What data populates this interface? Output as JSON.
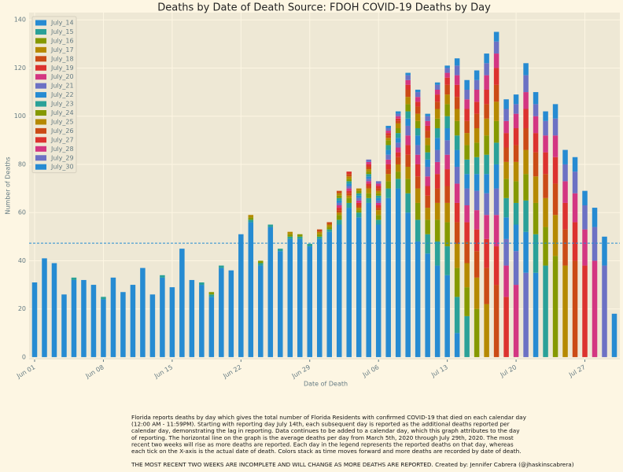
{
  "chart_data": {
    "type": "stacked_bar",
    "title": "Deaths by Date of Death      Source: FDOH COVID-19 Deaths by Day",
    "x_label": "Date of Death",
    "y_label": "Number of Deaths",
    "categories": [
      "Jun 01",
      null,
      null,
      null,
      null,
      null,
      null,
      "Jun 08",
      null,
      null,
      null,
      null,
      null,
      null,
      "Jun 15",
      null,
      null,
      null,
      null,
      null,
      null,
      "Jun 22",
      null,
      null,
      null,
      null,
      null,
      null,
      "Jun 29",
      null,
      null,
      null,
      null,
      null,
      null,
      "Jul 06",
      null,
      null,
      null,
      null,
      null,
      null,
      "Jul 13",
      null,
      null,
      null,
      null,
      null,
      null,
      "Jul 20",
      null,
      null,
      null,
      null,
      null,
      null,
      "Jul 27",
      null,
      null,
      null
    ],
    "ylim": [
      -1,
      143
    ],
    "yticks": [
      0,
      20,
      40,
      60,
      80,
      100,
      120,
      140
    ],
    "grid": true,
    "legend": "upper left",
    "reference_line": 47.3,
    "reference_color": "#268bd2",
    "series": [
      {
        "name": "July_14",
        "color": "#268bd2",
        "values": [
          31,
          41,
          39,
          26,
          32,
          32,
          30,
          24,
          33,
          27,
          30,
          37,
          26,
          33,
          29,
          45,
          32,
          30,
          25,
          37,
          36,
          51,
          56,
          38,
          54,
          44,
          49,
          49,
          46,
          49,
          52,
          55,
          62,
          58,
          64,
          55,
          66,
          70,
          60,
          48,
          43,
          38,
          34,
          10,
          0,
          0,
          0,
          0,
          0,
          0,
          0,
          0,
          0,
          0,
          0,
          0,
          0,
          0,
          0,
          0
        ]
      },
      {
        "name": "July_15",
        "color": "#2aa198",
        "values": [
          0,
          0,
          0,
          0,
          1,
          0,
          0,
          1,
          0,
          0,
          0,
          0,
          0,
          1,
          0,
          0,
          0,
          1,
          1,
          1,
          0,
          0,
          1,
          1,
          1,
          1,
          1,
          1,
          1,
          1,
          1,
          2,
          2,
          2,
          2,
          2,
          4,
          4,
          8,
          9,
          8,
          10,
          12,
          15,
          17,
          0,
          0,
          0,
          0,
          0,
          0,
          0,
          0,
          0,
          0,
          0,
          0,
          0,
          0,
          0
        ]
      },
      {
        "name": "July_16",
        "color": "#859900",
        "values": [
          0,
          0,
          0,
          0,
          0,
          0,
          0,
          0,
          0,
          0,
          0,
          0,
          0,
          0,
          0,
          0,
          0,
          0,
          1,
          0,
          0,
          0,
          1,
          1,
          0,
          0,
          1,
          1,
          0,
          1,
          1,
          2,
          2,
          1,
          2,
          2,
          3,
          3,
          6,
          7,
          6,
          9,
          10,
          12,
          12,
          20,
          0,
          0,
          0,
          0,
          0,
          0,
          0,
          0,
          0,
          0,
          0,
          0,
          0,
          0
        ]
      },
      {
        "name": "July_17",
        "color": "#b58900",
        "values": [
          0,
          0,
          0,
          0,
          0,
          0,
          0,
          0,
          0,
          0,
          0,
          0,
          0,
          0,
          0,
          0,
          0,
          0,
          0,
          0,
          0,
          0,
          1,
          0,
          0,
          0,
          1,
          0,
          0,
          1,
          1,
          1,
          1,
          1,
          2,
          2,
          3,
          3,
          5,
          6,
          5,
          7,
          8,
          10,
          10,
          13,
          22,
          0,
          0,
          0,
          0,
          0,
          0,
          0,
          0,
          0,
          0,
          0,
          0,
          0
        ]
      },
      {
        "name": "July_18",
        "color": "#cb4b16",
        "values": [
          0,
          0,
          0,
          0,
          0,
          0,
          0,
          0,
          0,
          0,
          0,
          0,
          0,
          0,
          0,
          0,
          0,
          0,
          0,
          0,
          0,
          0,
          0,
          0,
          0,
          0,
          0,
          0,
          0,
          1,
          1,
          1,
          1,
          1,
          1,
          1,
          2,
          3,
          5,
          5,
          5,
          6,
          7,
          9,
          9,
          11,
          15,
          30,
          0,
          0,
          0,
          0,
          0,
          0,
          0,
          0,
          0,
          0,
          0,
          0
        ]
      },
      {
        "name": "July_19",
        "color": "#dc322f",
        "values": [
          0,
          0,
          0,
          0,
          0,
          0,
          0,
          0,
          0,
          0,
          0,
          0,
          0,
          0,
          0,
          0,
          0,
          0,
          0,
          0,
          0,
          0,
          0,
          0,
          0,
          0,
          0,
          0,
          0,
          0,
          0,
          1,
          1,
          1,
          1,
          1,
          2,
          2,
          4,
          5,
          4,
          6,
          7,
          8,
          8,
          9,
          12,
          16,
          25,
          0,
          0,
          0,
          0,
          0,
          0,
          0,
          0,
          0,
          0,
          0
        ]
      },
      {
        "name": "July_20",
        "color": "#d33682",
        "values": [
          0,
          0,
          0,
          0,
          0,
          0,
          0,
          0,
          0,
          0,
          0,
          0,
          0,
          0,
          0,
          0,
          0,
          0,
          0,
          0,
          0,
          0,
          0,
          0,
          0,
          0,
          0,
          0,
          0,
          0,
          0,
          1,
          1,
          1,
          1,
          1,
          2,
          2,
          4,
          4,
          4,
          5,
          6,
          8,
          7,
          8,
          10,
          13,
          13,
          30,
          0,
          0,
          0,
          0,
          0,
          0,
          0,
          0,
          0,
          0
        ]
      },
      {
        "name": "July_21",
        "color": "#6c71c4",
        "values": [
          0,
          0,
          0,
          0,
          0,
          0,
          0,
          0,
          0,
          0,
          0,
          0,
          0,
          0,
          0,
          0,
          0,
          0,
          0,
          0,
          0,
          0,
          0,
          0,
          0,
          0,
          0,
          0,
          0,
          0,
          0,
          1,
          1,
          1,
          1,
          1,
          2,
          2,
          4,
          4,
          4,
          5,
          6,
          7,
          7,
          8,
          9,
          11,
          11,
          14,
          35,
          0,
          0,
          0,
          0,
          0,
          0,
          0,
          0,
          0
        ]
      },
      {
        "name": "July_22",
        "color": "#268bd2",
        "values": [
          0,
          0,
          0,
          0,
          0,
          0,
          0,
          0,
          0,
          0,
          0,
          0,
          0,
          0,
          0,
          0,
          0,
          0,
          0,
          0,
          0,
          0,
          0,
          0,
          0,
          0,
          0,
          0,
          0,
          0,
          0,
          1,
          1,
          1,
          1,
          1,
          2,
          2,
          3,
          4,
          3,
          5,
          5,
          7,
          6,
          7,
          8,
          10,
          9,
          11,
          17,
          35,
          0,
          0,
          0,
          0,
          0,
          0,
          0,
          0
        ]
      },
      {
        "name": "July_23",
        "color": "#2aa198",
        "values": [
          0,
          0,
          0,
          0,
          0,
          0,
          0,
          0,
          0,
          0,
          0,
          0,
          0,
          0,
          0,
          0,
          0,
          0,
          0,
          0,
          0,
          0,
          0,
          0,
          0,
          0,
          0,
          0,
          0,
          0,
          0,
          1,
          1,
          1,
          1,
          1,
          2,
          2,
          3,
          3,
          3,
          4,
          5,
          6,
          6,
          7,
          8,
          9,
          8,
          9,
          13,
          16,
          38,
          0,
          0,
          0,
          0,
          0,
          0,
          0
        ]
      },
      {
        "name": "July_24",
        "color": "#859900",
        "values": [
          0,
          0,
          0,
          0,
          0,
          0,
          0,
          0,
          0,
          0,
          0,
          0,
          0,
          0,
          0,
          0,
          0,
          0,
          0,
          0,
          0,
          0,
          0,
          0,
          0,
          0,
          0,
          0,
          0,
          0,
          0,
          1,
          1,
          1,
          1,
          1,
          2,
          2,
          3,
          3,
          3,
          4,
          5,
          6,
          6,
          6,
          8,
          9,
          8,
          9,
          11,
          13,
          16,
          42,
          0,
          0,
          0,
          0,
          0,
          0
        ]
      },
      {
        "name": "July_25",
        "color": "#b58900",
        "values": [
          0,
          0,
          0,
          0,
          0,
          0,
          0,
          0,
          0,
          0,
          0,
          0,
          0,
          0,
          0,
          0,
          0,
          0,
          0,
          0,
          0,
          0,
          0,
          0,
          0,
          0,
          0,
          0,
          0,
          0,
          0,
          1,
          1,
          1,
          1,
          1,
          1,
          2,
          3,
          3,
          3,
          4,
          4,
          5,
          5,
          6,
          7,
          8,
          7,
          8,
          10,
          11,
          12,
          17,
          38,
          0,
          0,
          0,
          0,
          0
        ]
      },
      {
        "name": "July_26",
        "color": "#cb4b16",
        "values": [
          0,
          0,
          0,
          0,
          0,
          0,
          0,
          0,
          0,
          0,
          0,
          0,
          0,
          0,
          0,
          0,
          0,
          0,
          0,
          0,
          0,
          0,
          0,
          0,
          0,
          0,
          0,
          0,
          0,
          0,
          0,
          1,
          1,
          0,
          1,
          1,
          1,
          1,
          3,
          3,
          3,
          3,
          4,
          5,
          5,
          6,
          6,
          7,
          6,
          7,
          9,
          10,
          10,
          13,
          15,
          40,
          0,
          0,
          0,
          0
        ]
      },
      {
        "name": "July_27",
        "color": "#dc322f",
        "values": [
          0,
          0,
          0,
          0,
          0,
          0,
          0,
          0,
          0,
          0,
          0,
          0,
          0,
          0,
          0,
          0,
          0,
          0,
          0,
          0,
          0,
          0,
          0,
          0,
          0,
          0,
          0,
          0,
          0,
          0,
          0,
          0,
          1,
          0,
          1,
          1,
          1,
          1,
          2,
          2,
          2,
          3,
          3,
          5,
          5,
          5,
          6,
          7,
          6,
          7,
          8,
          8,
          9,
          11,
          11,
          16,
          38,
          0,
          0,
          0
        ]
      },
      {
        "name": "July_28",
        "color": "#d33682",
        "values": [
          0,
          0,
          0,
          0,
          0,
          0,
          0,
          0,
          0,
          0,
          0,
          0,
          0,
          0,
          0,
          0,
          0,
          0,
          0,
          0,
          0,
          0,
          0,
          0,
          0,
          0,
          0,
          0,
          0,
          0,
          0,
          0,
          0,
          0,
          1,
          1,
          1,
          1,
          2,
          2,
          2,
          2,
          2,
          4,
          4,
          5,
          6,
          6,
          5,
          6,
          7,
          7,
          7,
          9,
          9,
          12,
          15,
          40,
          0,
          0
        ]
      },
      {
        "name": "July_29",
        "color": "#6c71c4",
        "values": [
          0,
          0,
          0,
          0,
          0,
          0,
          0,
          0,
          0,
          0,
          0,
          0,
          0,
          0,
          0,
          0,
          0,
          0,
          0,
          0,
          0,
          0,
          0,
          0,
          0,
          0,
          0,
          0,
          0,
          0,
          0,
          0,
          0,
          0,
          1,
          1,
          1,
          1,
          2,
          2,
          2,
          2,
          2,
          4,
          4,
          4,
          5,
          5,
          5,
          4,
          7,
          5,
          6,
          7,
          7,
          9,
          10,
          14,
          38,
          0
        ]
      },
      {
        "name": "July_30",
        "color": "#268bd2",
        "values": [
          0,
          0,
          0,
          0,
          0,
          0,
          0,
          0,
          0,
          0,
          0,
          0,
          0,
          0,
          0,
          0,
          0,
          0,
          0,
          0,
          0,
          0,
          0,
          0,
          0,
          0,
          0,
          0,
          0,
          0,
          0,
          0,
          0,
          0,
          0,
          0,
          1,
          1,
          1,
          1,
          1,
          1,
          1,
          3,
          4,
          4,
          4,
          4,
          4,
          4,
          5,
          5,
          4,
          6,
          6,
          6,
          6,
          8,
          12,
          18
        ]
      }
    ],
    "caption": [
      "Florida reports deaths by day which gives the total number of Florida Residents with confirmed COVID-19 that died on each calendar day",
      "(12:00 AM - 11:59PM). Starting with reporting day July 14th, each subsequent day is reported as the additional deaths reported per",
      "calendar day, demonstrating the lag in reporting. Data continues to be added to a calendar day, which this graph attributes to the day",
      "of reporting. The horizontal line on the graph is the average deaths per day from March 5th, 2020 through July 29th, 2020. The most",
      "recent two weeks will rise as more deaths are reported. Each day in the legend represents the reported deaths on that day, whereas",
      "each tick on the X-axis is the actual date of death. Colors stack as time moves forward and more deaths are recorded by date of death."
    ],
    "footer": "THE MOST RECENT TWO WEEKS ARE INCOMPLETE AND WILL CHANGE AS MORE DEATHS ARE REPORTED. Created by: Jennifer Cabrera (@jhaskinscabrera)"
  }
}
